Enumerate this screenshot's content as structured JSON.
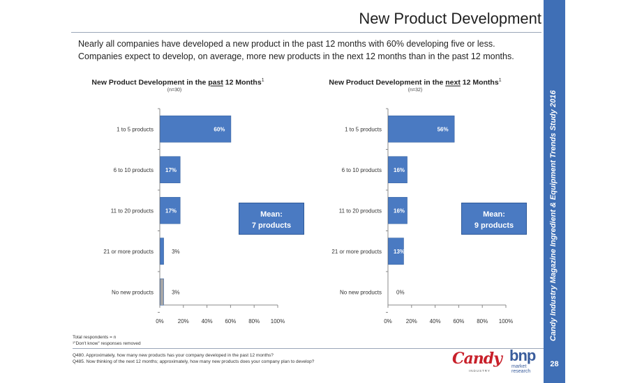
{
  "page": {
    "title": "New Product Development",
    "intro_line1": "Nearly all companies have developed a new product in the past 12 months with 60% developing five or less.",
    "intro_line2": "Companies expect to develop, on average, more new products in the next 12 months than in the past 12 months.",
    "sidebar_text": "Candy Industry Magazine Ingredient & Equipment Trends Study 2016",
    "page_number": "28",
    "footnote_total": "Total respondents = n",
    "footnote_dk": "¹\"Don't know\" responses removed",
    "question_1": "Q480. Approximately, how many new products has your company developed in the past 12 months?",
    "question_2": "Q485. Now thinking of the next 12 months; approximately, how many new products does your company plan to develop?",
    "logo_candy": "Candy",
    "logo_candy_sub": "INDUSTRY",
    "logo_bnp": "bnp",
    "logo_bnp_sub1": "market",
    "logo_bnp_sub2": "research"
  },
  "colors": {
    "bar": "#4a7ac2",
    "bar_gray": "#a6a6a6",
    "sidebar": "#3f6fb6",
    "label_on_bar": "#ffffff"
  },
  "chart_data": [
    {
      "type": "bar",
      "orientation": "horizontal",
      "title_prefix": "New Product Development in the ",
      "title_emph": "past",
      "title_suffix": " 12 Months",
      "title_sup": "1",
      "n_label": "(n=30)",
      "categories": [
        "1 to 5 products",
        "6 to 10 products",
        "11 to 20 products",
        "21 or more products",
        "No new products"
      ],
      "values": [
        60,
        17,
        17,
        3,
        3
      ],
      "value_labels": [
        "60%",
        "17%",
        "17%",
        "3%",
        "3%"
      ],
      "highlight_gray_index": 4,
      "xlim": [
        0,
        100
      ],
      "ticks": [
        "0%",
        "20%",
        "40%",
        "60%",
        "80%",
        "100%"
      ],
      "mean_line1": "Mean:",
      "mean_line2": "7 products"
    },
    {
      "type": "bar",
      "orientation": "horizontal",
      "title_prefix": "New Product Development in the ",
      "title_emph": "next",
      "title_suffix": " 12 Months",
      "title_sup": "1",
      "n_label": "(n=32)",
      "categories": [
        "1 to 5 products",
        "6 to 10 products",
        "11 to 20 products",
        "21 or more products",
        "No new products"
      ],
      "values": [
        56,
        16,
        16,
        13,
        0
      ],
      "value_labels": [
        "56%",
        "16%",
        "16%",
        "13%",
        "0%"
      ],
      "highlight_gray_index": -1,
      "xlim": [
        0,
        100
      ],
      "ticks": [
        "0%",
        "20%",
        "40%",
        "60%",
        "80%",
        "100%"
      ],
      "mean_line1": "Mean:",
      "mean_line2": "9 products"
    }
  ]
}
